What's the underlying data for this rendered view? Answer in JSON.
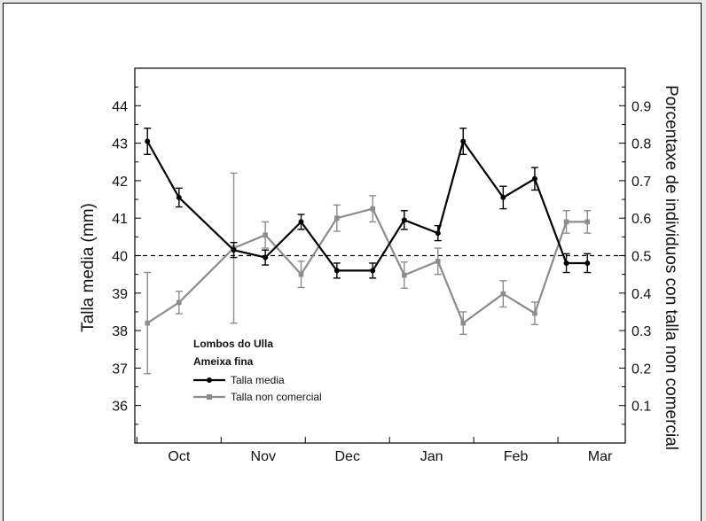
{
  "chart_data": {
    "type": "line",
    "categories": [
      "Oct",
      "Nov",
      "Dec",
      "Jan",
      "Feb",
      "Mar"
    ],
    "ylabel": "Talla media (mm)",
    "y2label": "Porcentaxe de individuos con talla non comercial",
    "ylim": [
      35,
      45
    ],
    "y2lim": [
      0,
      1
    ],
    "xlim": [
      -0.05,
      11.6
    ],
    "yticks": [
      36,
      37,
      38,
      39,
      40,
      41,
      42,
      43,
      44
    ],
    "y2ticks": [
      0.1,
      0.2,
      0.3,
      0.4,
      0.5,
      0.6,
      0.7,
      0.8,
      0.9
    ],
    "category_x": [
      1,
      3,
      5,
      7,
      9,
      11
    ],
    "reference_line": {
      "axis": "y2",
      "value": 0.5,
      "style": "dashed"
    },
    "legend": {
      "position": "bottom-left",
      "lines": [
        "Lombos do Ulla",
        "Ameixa fina"
      ],
      "entries": [
        "Talla media",
        "Talla non comercial"
      ]
    },
    "series": [
      {
        "name": "Talla media",
        "axis": "y",
        "color": "#000000",
        "x": [
          0.25,
          1,
          2.3,
          3.05,
          3.9,
          4.75,
          5.6,
          6.35,
          7.15,
          7.75,
          8.7,
          9.45,
          10.2,
          10.7
        ],
        "values": [
          43.05,
          41.55,
          40.15,
          39.95,
          40.9,
          39.6,
          39.6,
          40.95,
          40.6,
          43.05,
          41.55,
          42.05,
          39.8,
          39.8
        ],
        "errors": [
          0.35,
          0.25,
          0.2,
          0.2,
          0.2,
          0.2,
          0.2,
          0.25,
          0.2,
          0.35,
          0.3,
          0.3,
          0.25,
          0.25
        ]
      },
      {
        "name": "Talla non comercial",
        "axis": "y2",
        "color": "#8c8c8c",
        "x": [
          0.25,
          1,
          2.3,
          3.05,
          3.9,
          4.75,
          5.6,
          6.35,
          7.15,
          7.75,
          8.7,
          9.45,
          10.2,
          10.7
        ],
        "values": [
          0.32,
          0.375,
          0.52,
          0.555,
          0.45,
          0.6,
          0.625,
          0.448,
          0.485,
          0.32,
          0.398,
          0.346,
          0.59,
          0.59
        ],
        "errors": [
          0.135,
          0.03,
          0.2,
          0.035,
          0.035,
          0.035,
          0.035,
          0.035,
          0.035,
          0.03,
          0.035,
          0.03,
          0.03,
          0.03
        ]
      }
    ]
  }
}
